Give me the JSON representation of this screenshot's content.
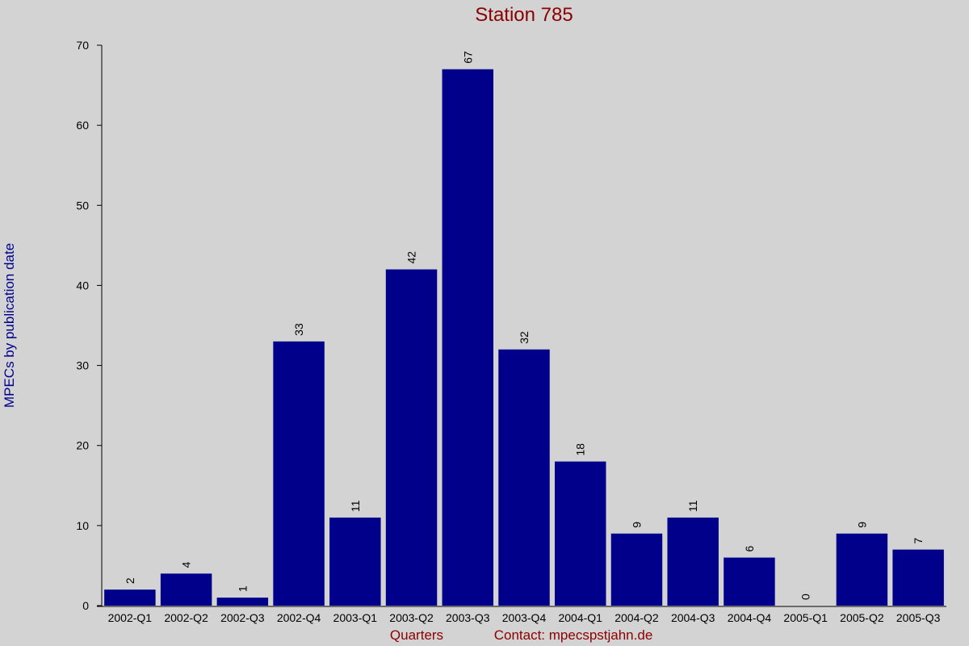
{
  "chart_data": {
    "type": "bar",
    "title": "Station 785",
    "x_label": "Quarters",
    "contact": "Contact: mpecspstjahn.de",
    "y_label": "MPECs by publication date",
    "categories": [
      "2002-Q1",
      "2002-Q2",
      "2002-Q3",
      "2002-Q4",
      "2003-Q1",
      "2003-Q2",
      "2003-Q3",
      "2003-Q4",
      "2004-Q1",
      "2004-Q2",
      "2004-Q3",
      "2004-Q4",
      "2005-Q1",
      "2005-Q2",
      "2005-Q3"
    ],
    "values": [
      2,
      4,
      1,
      33,
      11,
      42,
      67,
      32,
      18,
      9,
      11,
      6,
      0,
      9,
      7
    ],
    "color": "#00008b",
    "ylim": [
      0,
      70
    ],
    "yticks": [
      0,
      10,
      20,
      30,
      40,
      50,
      60,
      70
    ],
    "grid": false
  }
}
